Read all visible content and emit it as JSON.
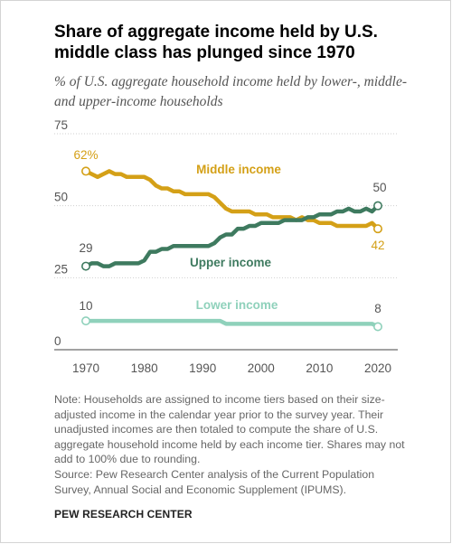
{
  "title": "Share of aggregate income held by U.S. middle class has plunged since 1970",
  "subtitle": "% of U.S. aggregate household income held by lower-, middle- and upper-income households",
  "note": "Note: Households are assigned to income tiers based on their size-adjusted income in the calendar year prior to the survey year. Their unadjusted incomes are then totaled to compute the share of U.S. aggregate household income held by each income tier. Shares may not add to 100% due to rounding.",
  "source": "Source: Pew Research Center analysis of the Current Population Survey, Annual Social and Economic Supplement (IPUMS).",
  "brand": "PEW RESEARCH CENTER",
  "colors": {
    "middle": "#d4a017",
    "upper": "#3e7a5f",
    "lower": "#8fd1bb",
    "grid": "#cfcfcf"
  },
  "chart_data": {
    "type": "line",
    "xlim": [
      1970,
      2020
    ],
    "ylim": [
      0,
      75
    ],
    "x_ticks": [
      "1970",
      "1980",
      "1990",
      "2000",
      "2010",
      "2020"
    ],
    "y_ticks": [
      "0",
      "25",
      "50",
      "75"
    ],
    "grid": true,
    "x": [
      1970,
      1971,
      1972,
      1973,
      1974,
      1975,
      1976,
      1977,
      1978,
      1979,
      1980,
      1981,
      1982,
      1983,
      1984,
      1985,
      1986,
      1987,
      1988,
      1989,
      1990,
      1991,
      1992,
      1993,
      1994,
      1995,
      1996,
      1997,
      1998,
      1999,
      2000,
      2001,
      2002,
      2003,
      2004,
      2005,
      2006,
      2007,
      2008,
      2009,
      2010,
      2011,
      2012,
      2013,
      2014,
      2015,
      2016,
      2017,
      2018,
      2019,
      2020
    ],
    "series": [
      {
        "name": "Middle income",
        "color_key": "middle",
        "values": [
          62,
          61,
          60,
          61,
          62,
          61,
          61,
          60,
          60,
          60,
          60,
          59,
          57,
          56,
          56,
          55,
          55,
          54,
          54,
          54,
          54,
          54,
          53,
          51,
          49,
          48,
          48,
          48,
          48,
          47,
          47,
          47,
          46,
          46,
          46,
          46,
          45,
          46,
          45,
          45,
          44,
          44,
          44,
          43,
          43,
          43,
          43,
          43,
          43,
          44,
          42
        ],
        "start_label": "62%",
        "end_label": "42"
      },
      {
        "name": "Upper income",
        "color_key": "upper",
        "values": [
          29,
          30,
          30,
          29,
          29,
          30,
          30,
          30,
          30,
          30,
          31,
          34,
          34,
          35,
          35,
          36,
          36,
          36,
          36,
          36,
          36,
          36,
          37,
          39,
          40,
          40,
          42,
          42,
          43,
          43,
          44,
          44,
          44,
          44,
          45,
          45,
          45,
          45,
          46,
          46,
          47,
          47,
          47,
          48,
          48,
          49,
          48,
          48,
          49,
          48,
          50
        ],
        "start_label": "29",
        "end_label": "50"
      },
      {
        "name": "Lower income",
        "color_key": "lower",
        "values": [
          10,
          10,
          10,
          10,
          10,
          10,
          10,
          10,
          10,
          10,
          10,
          10,
          10,
          10,
          10,
          10,
          10,
          10,
          10,
          10,
          10,
          10,
          10,
          10,
          9,
          9,
          9,
          9,
          9,
          9,
          9,
          9,
          9,
          9,
          9,
          9,
          9,
          9,
          9,
          9,
          9,
          9,
          9,
          9,
          9,
          9,
          9,
          9,
          9,
          9,
          8
        ],
        "start_label": "10",
        "end_label": "8"
      }
    ]
  }
}
